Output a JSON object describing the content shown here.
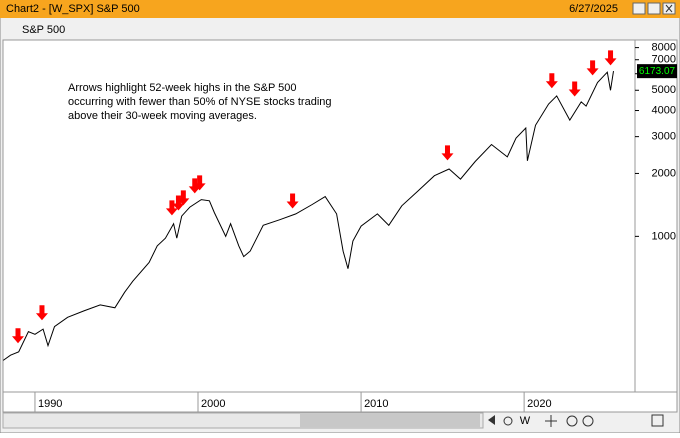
{
  "window": {
    "title": "Chart2 - [W_SPX] S&P 500",
    "date": "6/27/2025",
    "toolbar_button": "W"
  },
  "chart_data": {
    "type": "line",
    "annotation": [
      "Arrows highlight 52-week highs in the S&P 500",
      "occurring with fewer than 50% of NYSE stocks trading",
      "above their 30-week moving averages."
    ],
    "x": [
      1988.05,
      1988.5,
      1989.0,
      1989.6,
      1990.0,
      1990.5,
      1990.8,
      1991.2,
      1992.0,
      1993.0,
      1994.0,
      1994.9,
      1995.5,
      1996.0,
      1997.0,
      1997.5,
      1998.0,
      1998.5,
      1998.7,
      1999.0,
      1999.5,
      2000.2,
      2000.7,
      2001.0,
      2001.7,
      2002.0,
      2002.5,
      2002.8,
      2003.2,
      2004.0,
      2005.0,
      2006.0,
      2007.0,
      2007.8,
      2008.5,
      2008.9,
      2009.2,
      2009.5,
      2010.0,
      2011.0,
      2011.7,
      2012.5,
      2013.5,
      2014.5,
      2015.4,
      2016.1,
      2017.0,
      2018.0,
      2018.97,
      2019.5,
      2020.1,
      2020.2,
      2020.7,
      2021.5,
      2022.0,
      2022.8,
      2023.5,
      2023.8,
      2024.5,
      2025.1,
      2025.3,
      2025.48
    ],
    "series": [
      {
        "name": "S&P 500",
        "color": "#000000",
        "values": [
          255,
          270,
          280,
          350,
          340,
          360,
          300,
          370,
          410,
          440,
          470,
          455,
          540,
          610,
          750,
          900,
          980,
          1150,
          980,
          1250,
          1380,
          1500,
          1480,
          1300,
          1000,
          1150,
          900,
          800,
          850,
          1130,
          1200,
          1280,
          1420,
          1550,
          1280,
          850,
          700,
          950,
          1120,
          1280,
          1130,
          1400,
          1650,
          1950,
          2100,
          1880,
          2280,
          2750,
          2400,
          2950,
          3300,
          2300,
          3400,
          4300,
          4700,
          3600,
          4400,
          4200,
          5450,
          6100,
          5000,
          6173.07
        ]
      }
    ],
    "arrows": [
      {
        "x": 1988.96,
        "y": 308
      },
      {
        "x": 1990.43,
        "y": 397
      },
      {
        "x": 1998.4,
        "y": 1260
      },
      {
        "x": 1998.8,
        "y": 1330
      },
      {
        "x": 1999.1,
        "y": 1407
      },
      {
        "x": 1999.8,
        "y": 1605
      },
      {
        "x": 2000.1,
        "y": 1660
      },
      {
        "x": 2005.8,
        "y": 1360
      },
      {
        "x": 2015.3,
        "y": 2310
      },
      {
        "x": 2021.7,
        "y": 5110
      },
      {
        "x": 2023.1,
        "y": 4670
      },
      {
        "x": 2024.2,
        "y": 5890
      },
      {
        "x": 2025.3,
        "y": 6580
      }
    ],
    "arrow_color": "#ff0000",
    "log_scale": true,
    "xlim": [
      1988.04,
      2026.8
    ],
    "xticks": [
      1990,
      2000,
      2010,
      2020
    ],
    "ylim": [
      180,
      8700
    ],
    "yticks": [
      1000,
      2000,
      3000,
      4000,
      5000,
      6000,
      7000,
      8000
    ],
    "grid": false
  }
}
